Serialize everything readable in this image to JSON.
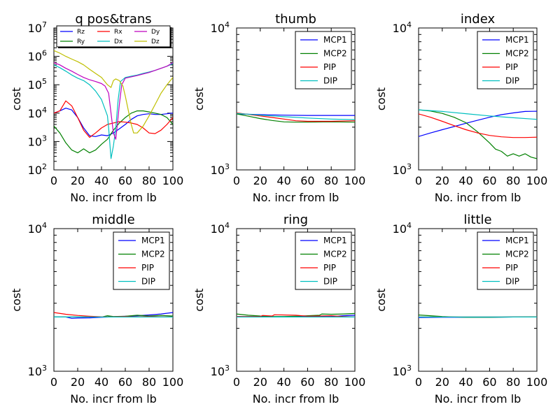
{
  "chart_data": [
    {
      "type": "line",
      "title": "q pos&trans",
      "xlabel": "No. incr from lb",
      "ylabel": "cost",
      "xlim": [
        0,
        100
      ],
      "ylim": [
        100,
        10000000
      ],
      "yscale": "log",
      "x_ticks": [
        "0",
        "20",
        "40",
        "60",
        "80",
        "100"
      ],
      "y_ticks": [
        {
          "base": "10",
          "exp": "2"
        },
        {
          "base": "10",
          "exp": "3"
        },
        {
          "base": "10",
          "exp": "4"
        },
        {
          "base": "10",
          "exp": "5"
        },
        {
          "base": "10",
          "exp": "6"
        },
        {
          "base": "10",
          "exp": "7"
        }
      ],
      "legend": {
        "placement": "top",
        "columns": 3
      },
      "series": [
        {
          "name": "Rz",
          "color": "#0000ff",
          "x": [
            0,
            5,
            10,
            15,
            20,
            25,
            30,
            35,
            40,
            45,
            50,
            55,
            60,
            65,
            70,
            75,
            80,
            85,
            90,
            95,
            100
          ],
          "y": [
            10000,
            12000,
            15000,
            13000,
            7000,
            3000,
            1600,
            1500,
            1700,
            1600,
            2000,
            2800,
            4000,
            6000,
            8000,
            9000,
            9500,
            9000,
            9000,
            9500,
            10000
          ]
        },
        {
          "name": "Ry",
          "color": "#008000",
          "x": [
            0,
            5,
            10,
            15,
            20,
            25,
            30,
            35,
            40,
            45,
            50,
            55,
            60,
            65,
            70,
            75,
            80,
            85,
            90,
            95,
            100
          ],
          "y": [
            3500,
            2000,
            900,
            500,
            400,
            550,
            400,
            500,
            800,
            1200,
            2500,
            4500,
            7000,
            10000,
            12000,
            12000,
            11000,
            10000,
            9000,
            7000,
            4000
          ]
        },
        {
          "name": "Rx",
          "color": "#ff0000",
          "x": [
            0,
            5,
            10,
            15,
            20,
            25,
            30,
            35,
            40,
            45,
            50,
            55,
            60,
            65,
            70,
            75,
            80,
            85,
            90,
            95,
            100
          ],
          "y": [
            10000,
            12000,
            27000,
            18000,
            7000,
            2500,
            1400,
            2000,
            3000,
            4000,
            4500,
            5000,
            4800,
            4500,
            4000,
            3000,
            2000,
            1900,
            2500,
            4000,
            7000
          ]
        },
        {
          "name": "Dx",
          "color": "#00bfbf",
          "x": [
            0,
            5,
            10,
            15,
            20,
            25,
            30,
            35,
            40,
            45,
            46,
            48,
            50,
            52,
            54,
            56,
            60,
            65,
            70,
            75,
            80,
            85,
            90,
            95,
            100
          ],
          "y": [
            500000,
            400000,
            300000,
            220000,
            170000,
            140000,
            100000,
            60000,
            30000,
            8000,
            3000,
            250,
            700,
            3000,
            30000,
            130000,
            180000,
            200000,
            220000,
            250000,
            280000,
            320000,
            380000,
            450000,
            550000
          ]
        },
        {
          "name": "Dy",
          "color": "#bf00bf",
          "x": [
            0,
            5,
            10,
            15,
            20,
            25,
            30,
            35,
            40,
            43,
            46,
            48,
            50,
            52,
            53,
            55,
            57,
            60,
            65,
            70,
            75,
            80,
            85,
            90,
            95,
            100
          ],
          "y": [
            600000,
            500000,
            380000,
            300000,
            230000,
            180000,
            150000,
            130000,
            110000,
            90000,
            50000,
            10000,
            2000,
            1200,
            3000,
            20000,
            100000,
            170000,
            190000,
            210000,
            240000,
            270000,
            320000,
            380000,
            450000,
            600000
          ]
        },
        {
          "name": "Dz",
          "color": "#bfbf00",
          "x": [
            0,
            5,
            10,
            15,
            20,
            25,
            30,
            35,
            40,
            45,
            48,
            50,
            52,
            55,
            58,
            60,
            63,
            65,
            67,
            70,
            75,
            80,
            85,
            90,
            95,
            100
          ],
          "y": [
            1600000,
            1300000,
            1000000,
            800000,
            650000,
            500000,
            350000,
            250000,
            180000,
            100000,
            80000,
            140000,
            160000,
            140000,
            90000,
            40000,
            10000,
            4000,
            2000,
            2000,
            3500,
            8000,
            20000,
            50000,
            100000,
            180000
          ]
        }
      ]
    },
    {
      "type": "line",
      "title": "thumb",
      "xlabel": "No. incr from lb",
      "ylabel": "cost",
      "xlim": [
        0,
        100
      ],
      "ylim": [
        1000,
        10000
      ],
      "yscale": "log",
      "x_ticks": [
        "0",
        "20",
        "40",
        "60",
        "80",
        "100"
      ],
      "y_ticks": [
        {
          "base": "10",
          "exp": "3"
        },
        {
          "base": "10",
          "exp": "4"
        }
      ],
      "legend": {
        "placement": "top-right",
        "columns": 1
      },
      "series": [
        {
          "name": "MCP1",
          "color": "#0000ff",
          "x": [
            0,
            20,
            40,
            60,
            80,
            100
          ],
          "y": [
            2480,
            2450,
            2430,
            2420,
            2420,
            2420
          ]
        },
        {
          "name": "MCP2",
          "color": "#008000",
          "x": [
            0,
            10,
            20,
            30,
            40,
            50,
            60,
            80,
            100
          ],
          "y": [
            2480,
            2390,
            2300,
            2230,
            2180,
            2170,
            2170,
            2180,
            2170
          ]
        },
        {
          "name": "PIP",
          "color": "#ff0000",
          "x": [
            0,
            10,
            20,
            30,
            40,
            50,
            60,
            80,
            100
          ],
          "y": [
            2520,
            2460,
            2400,
            2340,
            2280,
            2220,
            2200,
            2200,
            2220
          ]
        },
        {
          "name": "DIP",
          "color": "#00bfbf",
          "x": [
            0,
            20,
            40,
            60,
            80,
            100
          ],
          "y": [
            2500,
            2430,
            2370,
            2320,
            2280,
            2260
          ]
        }
      ]
    },
    {
      "type": "line",
      "title": "index",
      "xlabel": "No. incr from lb",
      "ylabel": "cost",
      "xlim": [
        0,
        100
      ],
      "ylim": [
        1000,
        10000
      ],
      "yscale": "log",
      "x_ticks": [
        "0",
        "20",
        "40",
        "60",
        "80",
        "100"
      ],
      "y_ticks": [
        {
          "base": "10",
          "exp": "3"
        },
        {
          "base": "10",
          "exp": "4"
        }
      ],
      "legend": {
        "placement": "top-right",
        "columns": 1
      },
      "series": [
        {
          "name": "MCP1",
          "color": "#0000ff",
          "x": [
            0,
            10,
            20,
            30,
            40,
            50,
            60,
            70,
            80,
            90,
            100
          ],
          "y": [
            1720,
            1820,
            1920,
            2020,
            2130,
            2240,
            2350,
            2450,
            2520,
            2580,
            2590
          ]
        },
        {
          "name": "MCP2",
          "color": "#008000",
          "x": [
            0,
            10,
            20,
            30,
            40,
            50,
            60,
            65,
            70,
            75,
            80,
            85,
            90,
            95,
            100
          ],
          "y": [
            2650,
            2600,
            2500,
            2350,
            2150,
            1850,
            1550,
            1400,
            1350,
            1250,
            1300,
            1250,
            1300,
            1230,
            1200
          ]
        },
        {
          "name": "PIP",
          "color": "#ff0000",
          "x": [
            0,
            10,
            20,
            30,
            40,
            50,
            60,
            70,
            80,
            90,
            100
          ],
          "y": [
            2480,
            2350,
            2200,
            2050,
            1920,
            1820,
            1750,
            1710,
            1690,
            1690,
            1700
          ]
        },
        {
          "name": "DIP",
          "color": "#00bfbf",
          "x": [
            0,
            20,
            40,
            60,
            80,
            100
          ],
          "y": [
            2650,
            2580,
            2490,
            2400,
            2330,
            2270
          ]
        }
      ]
    },
    {
      "type": "line",
      "title": "middle",
      "xlabel": "No. incr from lb",
      "ylabel": "cost",
      "xlim": [
        0,
        100
      ],
      "ylim": [
        1000,
        10000
      ],
      "yscale": "log",
      "x_ticks": [
        "0",
        "20",
        "40",
        "60",
        "80",
        "100"
      ],
      "y_ticks": [
        {
          "base": "10",
          "exp": "3"
        },
        {
          "base": "10",
          "exp": "4"
        }
      ],
      "legend": {
        "placement": "top-right",
        "columns": 1
      },
      "series": [
        {
          "name": "MCP1",
          "color": "#0000ff",
          "x": [
            0,
            10,
            15,
            20,
            30,
            40,
            50,
            60,
            70,
            80,
            90,
            100
          ],
          "y": [
            2400,
            2400,
            2350,
            2360,
            2370,
            2390,
            2410,
            2430,
            2450,
            2480,
            2520,
            2580
          ]
        },
        {
          "name": "MCP2",
          "color": "#008000",
          "x": [
            0,
            20,
            40,
            45,
            50,
            60,
            70,
            80,
            90,
            100
          ],
          "y": [
            2400,
            2400,
            2400,
            2450,
            2420,
            2430,
            2470,
            2440,
            2460,
            2440
          ]
        },
        {
          "name": "PIP",
          "color": "#ff0000",
          "x": [
            0,
            10,
            20,
            30,
            40,
            50,
            60,
            70,
            80,
            90,
            100
          ],
          "y": [
            2580,
            2510,
            2460,
            2430,
            2410,
            2410,
            2420,
            2410,
            2420,
            2410,
            2410
          ]
        },
        {
          "name": "DIP",
          "color": "#00bfbf",
          "x": [
            0,
            20,
            40,
            60,
            80,
            100
          ],
          "y": [
            2400,
            2400,
            2400,
            2400,
            2400,
            2400
          ]
        }
      ]
    },
    {
      "type": "line",
      "title": "ring",
      "xlabel": "No. incr from lb",
      "ylabel": "cost",
      "xlim": [
        0,
        100
      ],
      "ylim": [
        1000,
        10000
      ],
      "yscale": "log",
      "x_ticks": [
        "0",
        "20",
        "40",
        "60",
        "80",
        "100"
      ],
      "y_ticks": [
        {
          "base": "10",
          "exp": "3"
        },
        {
          "base": "10",
          "exp": "4"
        }
      ],
      "legend": {
        "placement": "top-right",
        "columns": 1
      },
      "series": [
        {
          "name": "MCP1",
          "color": "#0000ff",
          "x": [
            0,
            20,
            40,
            60,
            80,
            90,
            100
          ],
          "y": [
            2420,
            2410,
            2400,
            2410,
            2420,
            2450,
            2470
          ]
        },
        {
          "name": "MCP2",
          "color": "#008000",
          "x": [
            0,
            10,
            20,
            30,
            40,
            50,
            60,
            70,
            72,
            80,
            90,
            100
          ],
          "y": [
            2520,
            2470,
            2440,
            2420,
            2420,
            2430,
            2450,
            2470,
            2520,
            2510,
            2520,
            2540
          ]
        },
        {
          "name": "PIP",
          "color": "#ff0000",
          "x": [
            0,
            20,
            22,
            30,
            32,
            50,
            60,
            70,
            80,
            90,
            100
          ],
          "y": [
            2420,
            2420,
            2460,
            2440,
            2490,
            2470,
            2430,
            2440,
            2450,
            2420,
            2400
          ]
        },
        {
          "name": "DIP",
          "color": "#00bfbf",
          "x": [
            0,
            20,
            40,
            60,
            80,
            100
          ],
          "y": [
            2400,
            2400,
            2400,
            2400,
            2400,
            2400
          ]
        }
      ]
    },
    {
      "type": "line",
      "title": "little",
      "xlabel": "No. incr from lb",
      "ylabel": "cost",
      "xlim": [
        0,
        100
      ],
      "ylim": [
        1000,
        10000
      ],
      "yscale": "log",
      "x_ticks": [
        "0",
        "20",
        "40",
        "60",
        "80",
        "100"
      ],
      "y_ticks": [
        {
          "base": "10",
          "exp": "3"
        },
        {
          "base": "10",
          "exp": "4"
        }
      ],
      "legend": {
        "placement": "top-right",
        "columns": 1
      },
      "series": [
        {
          "name": "MCP1",
          "color": "#0000ff",
          "x": [
            0,
            20,
            40,
            60,
            80,
            100
          ],
          "y": [
            2380,
            2390,
            2390,
            2390,
            2400,
            2400
          ]
        },
        {
          "name": "MCP2",
          "color": "#008000",
          "x": [
            0,
            10,
            20,
            30,
            40,
            60,
            80,
            100
          ],
          "y": [
            2480,
            2450,
            2420,
            2400,
            2390,
            2390,
            2400,
            2410
          ]
        },
        {
          "name": "PIP",
          "color": "#ff0000",
          "x": [
            0,
            20,
            40,
            60,
            80,
            100
          ],
          "y": [
            2400,
            2400,
            2400,
            2400,
            2400,
            2400
          ]
        },
        {
          "name": "DIP",
          "color": "#00bfbf",
          "x": [
            0,
            20,
            40,
            60,
            80,
            100
          ],
          "y": [
            2400,
            2400,
            2400,
            2400,
            2400,
            2400
          ]
        }
      ]
    }
  ]
}
